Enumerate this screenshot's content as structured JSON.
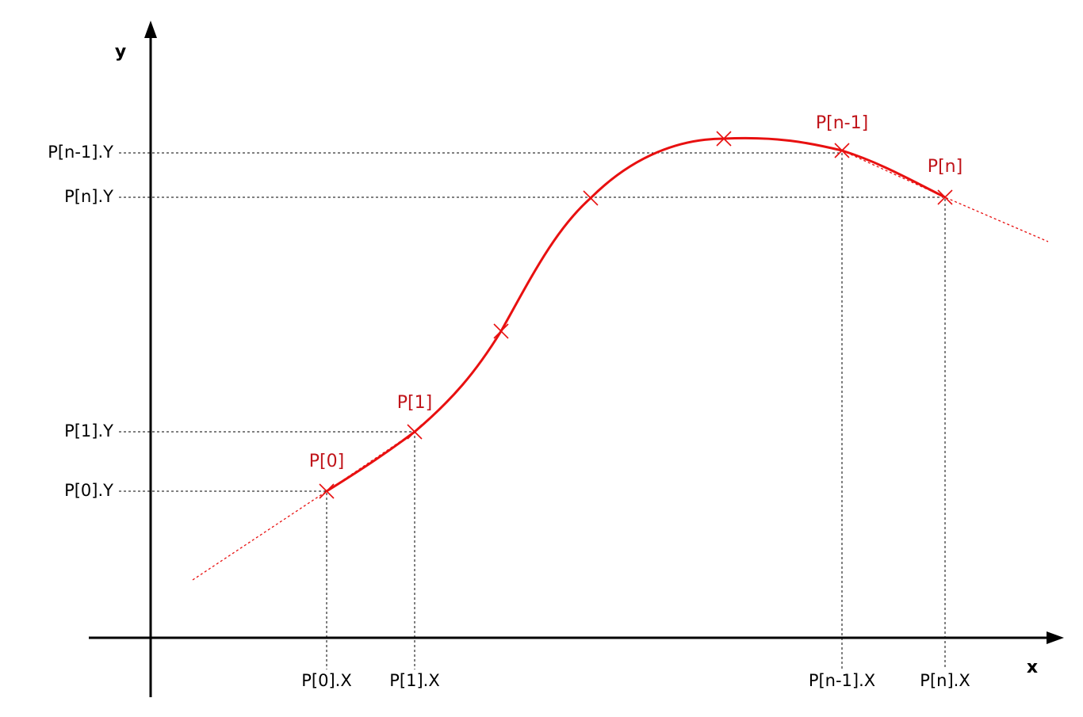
{
  "axes": {
    "x_label": "x",
    "y_label": "y"
  },
  "points": [
    {
      "label": "P[0]",
      "x_label": "P[0].X",
      "y_label": "P[0].Y"
    },
    {
      "label": "P[1]",
      "x_label": "P[1].X",
      "y_label": "P[1].Y"
    },
    {
      "label": "P[n-1]",
      "x_label": "P[n-1].X",
      "y_label": "P[n-1].Y"
    },
    {
      "label": "P[n]",
      "x_label": "P[n].X",
      "y_label": "P[n].Y"
    }
  ]
}
